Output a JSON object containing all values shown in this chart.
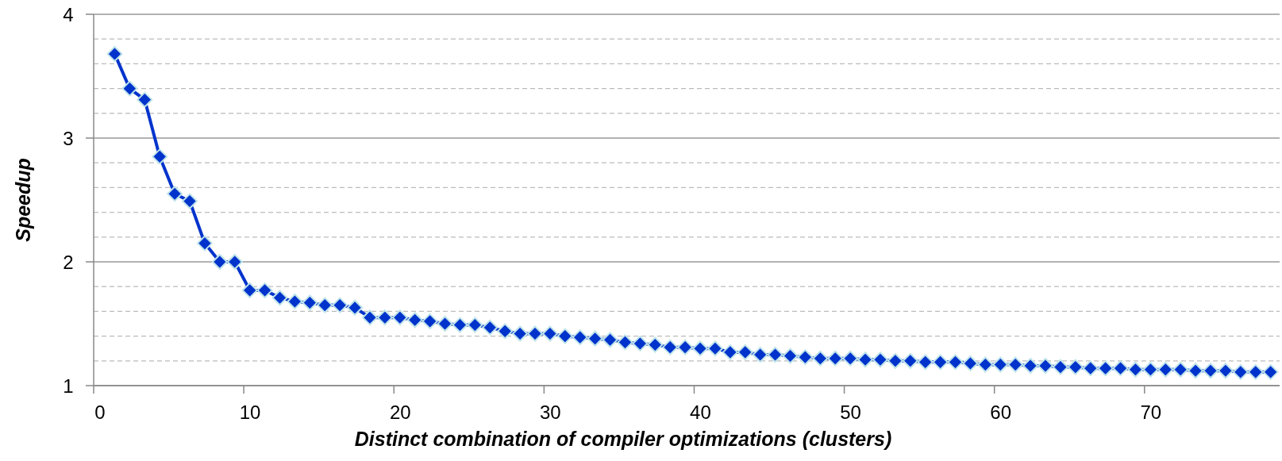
{
  "chart_data": {
    "type": "line",
    "xlabel": "Distinct combination of compiler optimizations (clusters)",
    "ylabel": "Speedup",
    "x": [
      1.4,
      2.4,
      3.4,
      4.4,
      5.4,
      6.4,
      7.4,
      8.4,
      9.4,
      10.4,
      11.4,
      12.4,
      13.4,
      14.4,
      15.4,
      16.4,
      17.4,
      18.4,
      19.4,
      20.4,
      21.4,
      22.4,
      23.4,
      24.4,
      25.4,
      26.4,
      27.4,
      28.4,
      29.4,
      30.4,
      31.4,
      32.4,
      33.4,
      34.4,
      35.4,
      36.4,
      37.4,
      38.4,
      39.4,
      40.4,
      41.4,
      42.4,
      43.4,
      44.4,
      45.4,
      46.4,
      47.4,
      48.4,
      49.4,
      50.4,
      51.4,
      52.4,
      53.4,
      54.4,
      55.4,
      56.4,
      57.4,
      58.4,
      59.4,
      60.4,
      61.4,
      62.4,
      63.4,
      64.4,
      65.4,
      66.4,
      67.4,
      68.4,
      69.4,
      70.4,
      71.4,
      72.4,
      73.4,
      74.4,
      75.4,
      76.4,
      77.4,
      78.4
    ],
    "series": [
      {
        "color": "#0033cc",
        "values": [
          3.68,
          3.4,
          3.31,
          2.85,
          2.55,
          2.49,
          2.15,
          2.0,
          2.0,
          1.77,
          1.77,
          1.71,
          1.68,
          1.67,
          1.65,
          1.65,
          1.63,
          1.55,
          1.55,
          1.55,
          1.53,
          1.52,
          1.5,
          1.49,
          1.49,
          1.47,
          1.44,
          1.42,
          1.42,
          1.42,
          1.4,
          1.39,
          1.38,
          1.37,
          1.35,
          1.34,
          1.33,
          1.31,
          1.31,
          1.3,
          1.3,
          1.27,
          1.27,
          1.25,
          1.25,
          1.24,
          1.23,
          1.22,
          1.22,
          1.22,
          1.21,
          1.21,
          1.2,
          1.2,
          1.19,
          1.19,
          1.19,
          1.18,
          1.17,
          1.17,
          1.17,
          1.16,
          1.16,
          1.15,
          1.15,
          1.14,
          1.14,
          1.14,
          1.13,
          1.13,
          1.13,
          1.13,
          1.12,
          1.12,
          1.12,
          1.11,
          1.11,
          1.11
        ]
      }
    ],
    "xlim": [
      0,
      79
    ],
    "xticks": [
      0,
      10,
      20,
      30,
      40,
      50,
      60,
      70
    ],
    "ylim": [
      1,
      4
    ],
    "yticks": [
      1,
      {
        "value": 1.2,
        "label": null
      },
      {
        "value": 1.4,
        "label": null
      },
      {
        "value": 1.6,
        "label": null
      },
      {
        "value": 1.8,
        "label": null
      },
      2,
      {
        "value": 2.2,
        "label": null
      },
      {
        "value": 2.4,
        "label": null
      },
      {
        "value": 2.6,
        "label": null
      },
      {
        "value": 2.8,
        "label": null
      },
      3,
      {
        "value": 3.2,
        "label": null
      },
      {
        "value": 3.4,
        "label": null
      },
      {
        "value": 3.6,
        "label": null
      },
      {
        "value": 3.8,
        "label": null
      },
      4
    ],
    "grid": "y",
    "marker": "diamond",
    "line_style": "solid"
  }
}
